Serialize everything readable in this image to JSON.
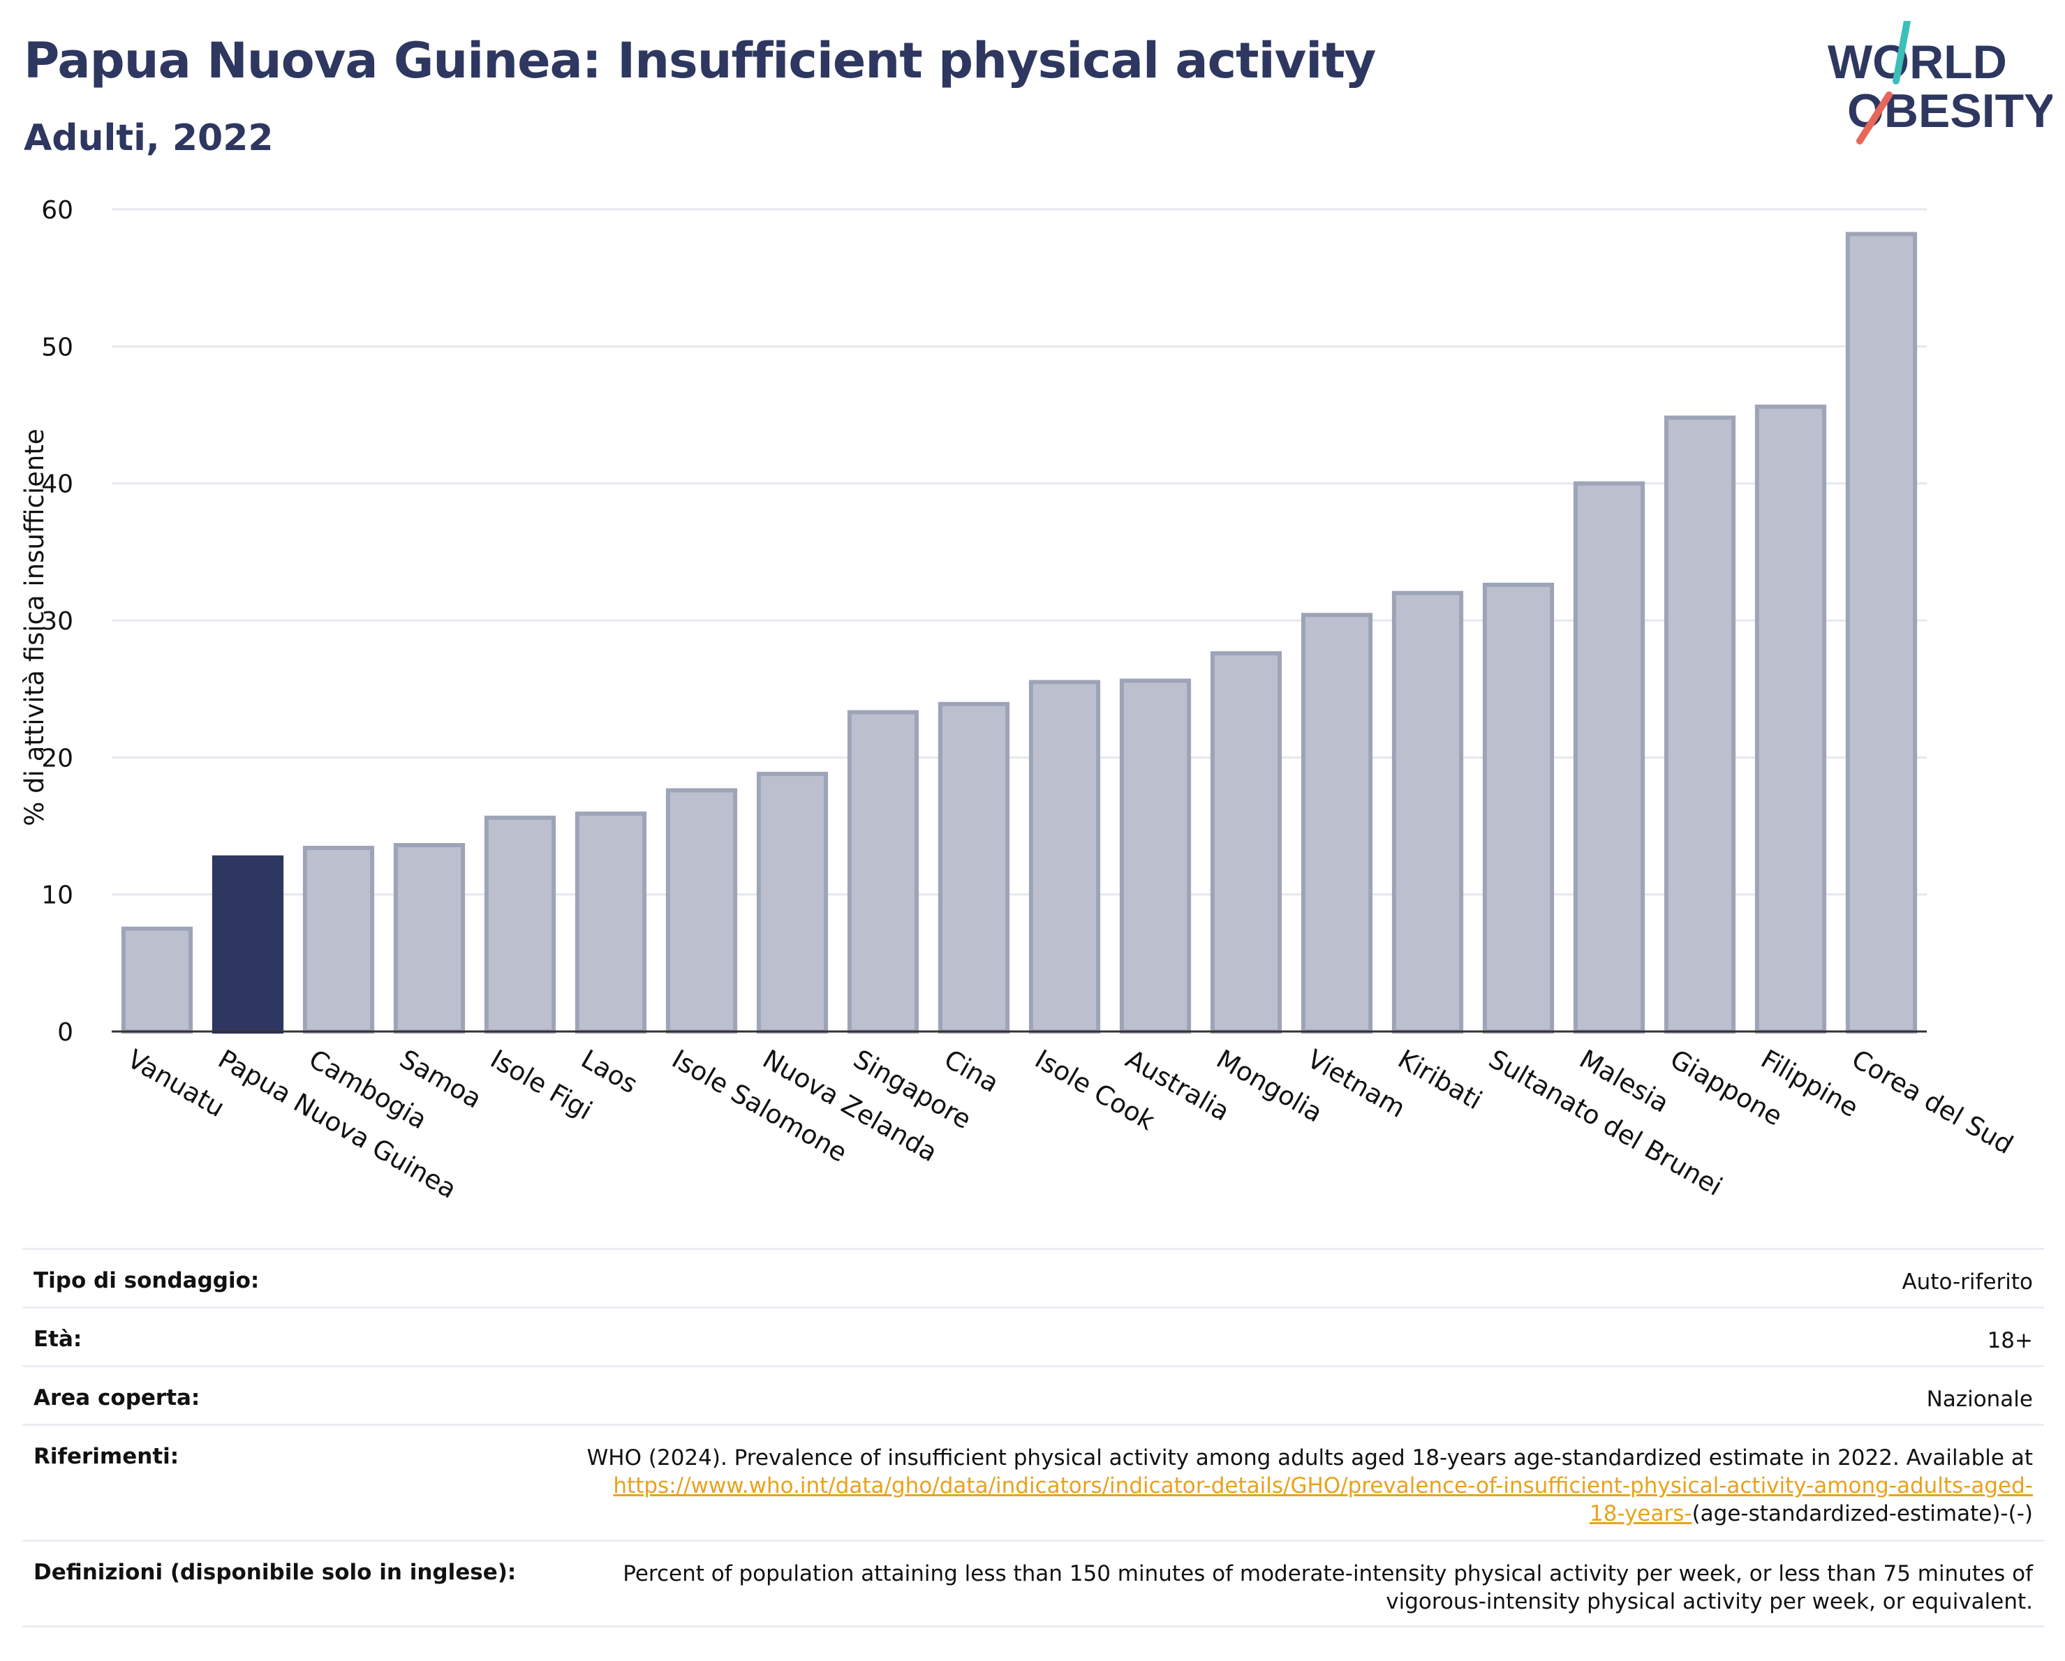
{
  "header": {
    "title": "Papua Nuova Guinea: Insufficient physical activity",
    "subtitle": "Adulti, 2022"
  },
  "logo": {
    "line1": "WORLD",
    "line2": "OBESITY",
    "colors": {
      "text": "#2d3760",
      "slash_top": "#3bbfb8",
      "slash_bottom": "#e8675a"
    }
  },
  "chart_data": {
    "type": "bar",
    "ylabel": "% di attività fisica insufficiente",
    "ylim": [
      0,
      60
    ],
    "yticks": [
      0,
      10,
      20,
      30,
      40,
      50,
      60
    ],
    "grid": true,
    "highlight_color": "#2d3760",
    "bar_color": "#bcc0ce",
    "bar_outline": "#9ea4b8",
    "categories": [
      "Vanuatu",
      "Papua Nuova Guinea",
      "Cambogia",
      "Samoa",
      "Isole Figi",
      "Laos",
      "Isole Salomone",
      "Nuova Zelanda",
      "Singapore",
      "Cina",
      "Isole Cook",
      "Australia",
      "Mongolia",
      "Vietnam",
      "Kiribati",
      "Sultanato del Brunei",
      "Malesia",
      "Giappone",
      "Filippine",
      "Corea del Sud"
    ],
    "values": [
      7.5,
      12.7,
      13.4,
      13.6,
      15.6,
      15.9,
      17.6,
      18.8,
      23.3,
      23.9,
      25.5,
      25.6,
      27.6,
      30.4,
      32.0,
      32.6,
      40.0,
      44.8,
      45.6,
      58.2
    ],
    "highlight": "Papua Nuova Guinea"
  },
  "meta": {
    "survey_type": {
      "label": "Tipo di sondaggio:",
      "value": "Auto-riferito"
    },
    "age": {
      "label": "Età:",
      "value": "18+"
    },
    "coverage": {
      "label": "Area coperta:",
      "value": "Nazionale"
    },
    "references": {
      "label": "Riferimenti:",
      "text": "WHO (2024). Prevalence of insufficient physical activity among adults aged 18-years age-standardized estimate in 2022. Available at",
      "link_line1": "https://www.who.int/data/gho/data/indicators/indicator-details/GHO/prevalence-of-insufficient-physical-activity-among-adults-aged-",
      "link_line2": "18-years-",
      "suffix": "(age-standardized-estimate)-(-)"
    },
    "definitions": {
      "label": "Definizioni (disponibile solo in inglese):",
      "line1": "Percent of population attaining less than 150 minutes of moderate-intensity physical activity per week, or less than 75 minutes of",
      "line2": "vigorous-intensity physical activity per week, or equivalent."
    }
  }
}
